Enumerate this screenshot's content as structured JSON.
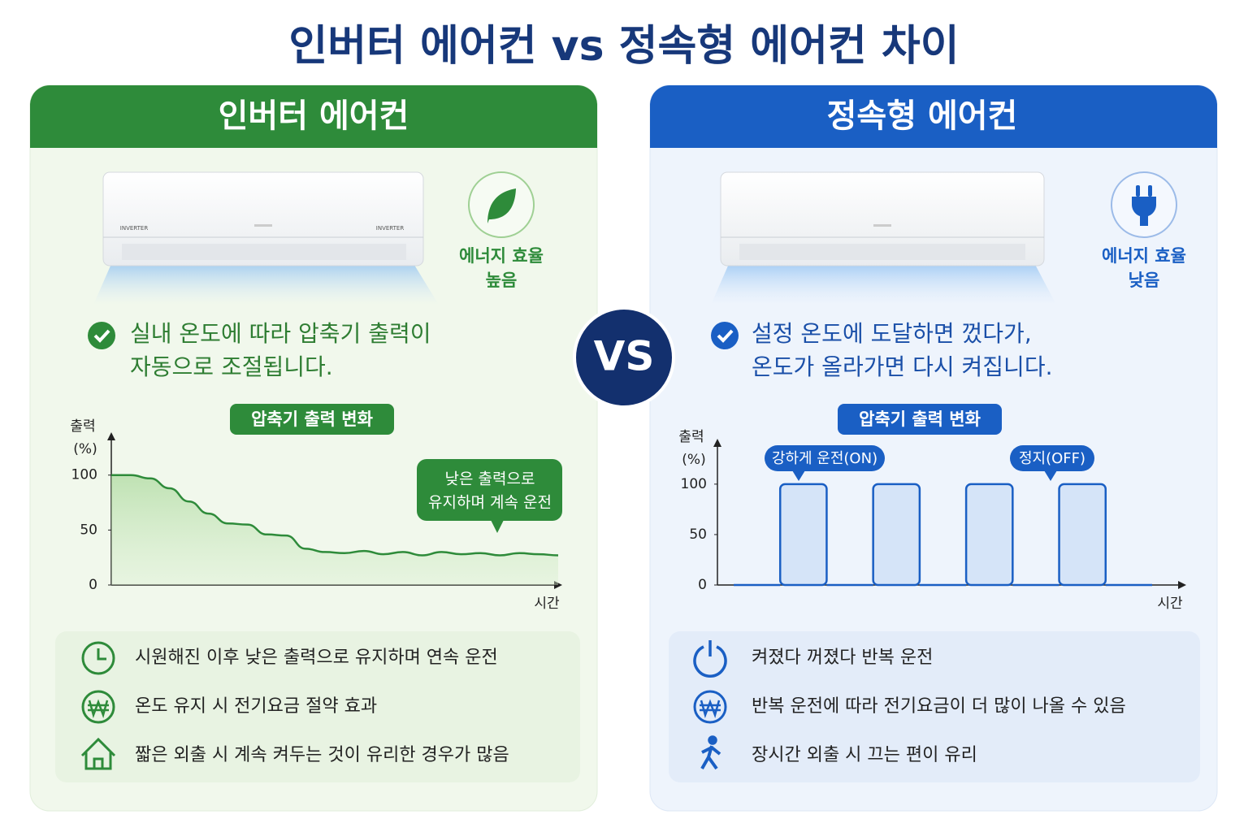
{
  "title": "인버터 에어컨 vs 정속형 에어컨 차이",
  "vs": "VS",
  "panels": [
    {
      "header": "인버터 에어컨",
      "unit_labels": [
        "INVERTER",
        "INVERTER"
      ],
      "badge": [
        "에너지 효율",
        "높음"
      ],
      "description": [
        "실내 온도에 따라 압축기 출력이",
        "자동으로 조절됩니다."
      ],
      "chart_data": {
        "type": "line",
        "title": "압축기 출력 변화",
        "ylabel": [
          "출력",
          "(%)"
        ],
        "xlabel": "시간",
        "color": "#2e8b3a",
        "ylim": [
          0,
          139
        ],
        "yticks": [
          0,
          50,
          100
        ],
        "values": [
          100,
          100,
          97,
          88,
          76,
          65,
          56,
          55,
          46,
          45,
          33,
          30,
          29,
          31,
          28,
          30,
          27,
          30,
          28,
          29,
          27,
          29,
          28,
          27
        ],
        "annotations": [
          [
            "낮은 출력으로",
            "유지하며 계속 운전"
          ]
        ]
      },
      "features": [
        "시원해진 이후 낮은 출력으로 유지하며 연속 운전",
        "온도 유지 시 전기요금 절약 효과",
        "짧은 외출 시 계속 켜두는 것이 유리한 경우가 많음"
      ]
    },
    {
      "header": "정속형 에어컨",
      "badge": [
        "에너지 효율",
        "낮음"
      ],
      "description": [
        "설정 온도에 도달하면 껐다가,",
        "온도가 올라가면 다시 켜집니다."
      ],
      "chart_data": {
        "type": "step",
        "title": "압축기 출력 변화",
        "ylabel": [
          "출력",
          "(%)"
        ],
        "xlabel": "시간",
        "color": "#1a5fc4",
        "ylim": [
          0,
          145
        ],
        "yticks": [
          0,
          50,
          100
        ],
        "values": [
          0,
          100,
          0,
          100,
          0,
          100,
          0,
          100,
          0
        ],
        "annotations": [
          "강하게 운전(ON)",
          "정지(OFF)"
        ]
      },
      "features": [
        "켜졌다 꺼졌다 반복 운전",
        "반복 운전에 따라 전기요금이 더 많이 나올 수 있음",
        "장시간 외출 시 끄는 편이 유리"
      ]
    }
  ]
}
